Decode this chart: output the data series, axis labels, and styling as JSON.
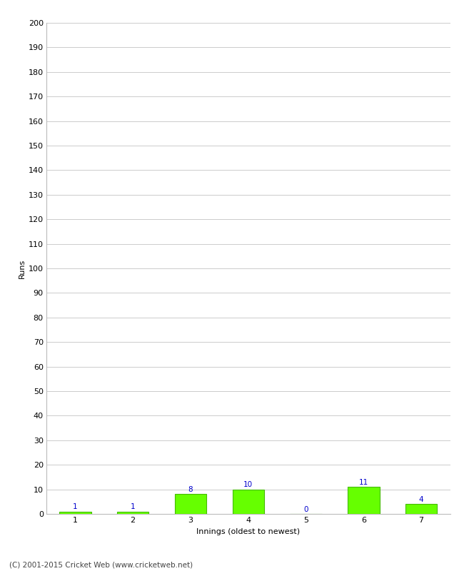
{
  "categories": [
    "1",
    "2",
    "3",
    "4",
    "5",
    "6",
    "7"
  ],
  "values": [
    1,
    1,
    8,
    10,
    0,
    11,
    4
  ],
  "bar_color": "#66ff00",
  "bar_edge_color": "#44bb00",
  "label_color": "#0000cc",
  "xlabel": "Innings (oldest to newest)",
  "ylabel": "Runs",
  "ylim": [
    0,
    200
  ],
  "yticks": [
    0,
    10,
    20,
    30,
    40,
    50,
    60,
    70,
    80,
    90,
    100,
    110,
    120,
    130,
    140,
    150,
    160,
    170,
    180,
    190,
    200
  ],
  "grid_color": "#cccccc",
  "background_color": "#ffffff",
  "footer": "(C) 2001-2015 Cricket Web (www.cricketweb.net)",
  "footer_color": "#444444",
  "label_fontsize": 7.5,
  "axis_label_fontsize": 8,
  "tick_fontsize": 8,
  "footer_fontsize": 7.5
}
